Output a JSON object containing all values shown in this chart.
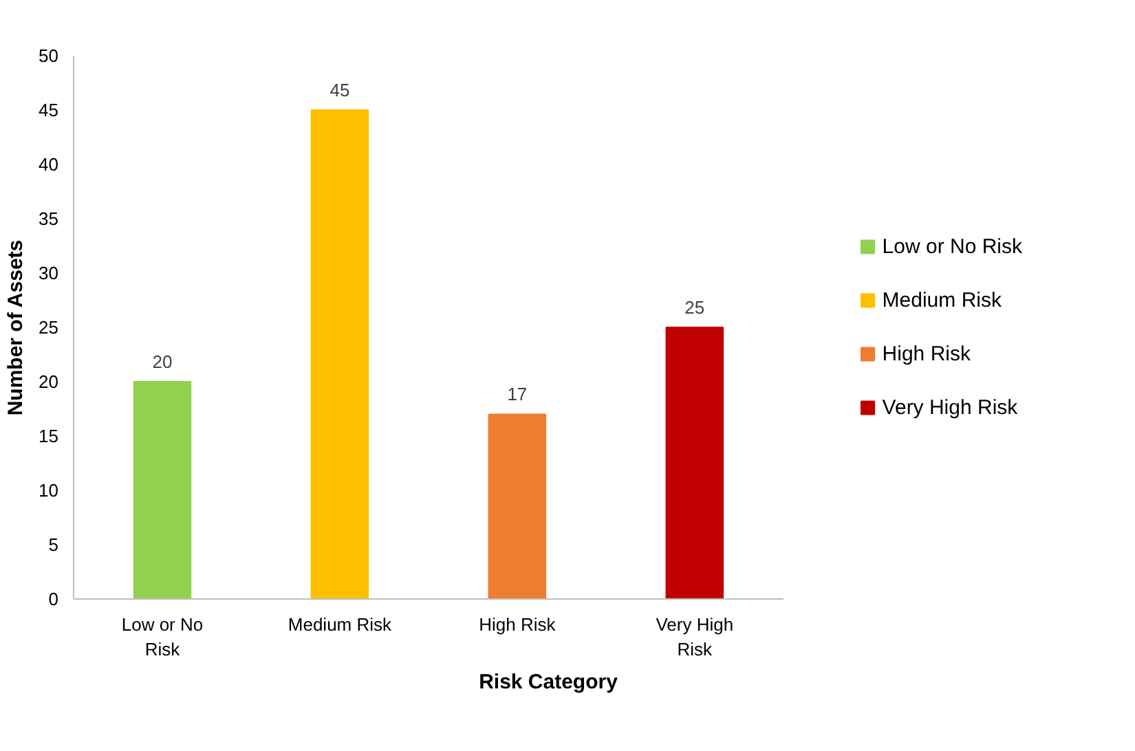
{
  "chart_data": {
    "type": "bar",
    "xlabel": "Risk Category",
    "ylabel": "Number of Assets",
    "categories": [
      "Low or No Risk",
      "Medium Risk",
      "High Risk",
      "Very High Risk"
    ],
    "series": [
      {
        "name": "Low or No Risk",
        "color": "#92d050",
        "values": [
          20,
          null,
          null,
          null
        ]
      },
      {
        "name": "Medium Risk",
        "color": "#ffc000",
        "values": [
          null,
          45,
          null,
          null
        ]
      },
      {
        "name": "High Risk",
        "color": "#ed7d31",
        "values": [
          null,
          null,
          17,
          null
        ]
      },
      {
        "name": "Very High Risk",
        "color": "#c00000",
        "values": [
          null,
          null,
          null,
          25
        ]
      }
    ],
    "ylim": [
      0,
      50
    ],
    "yticks": [
      0,
      5,
      10,
      15,
      20,
      25,
      30,
      35,
      40,
      45,
      50
    ],
    "grid": false,
    "legend": "right",
    "data_labels": true
  }
}
